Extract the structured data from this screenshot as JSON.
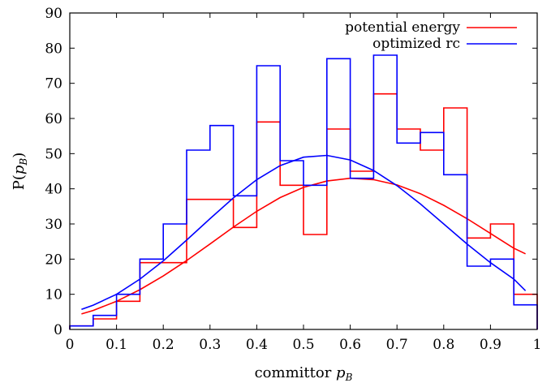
{
  "chart_data": {
    "type": "line",
    "xlabel": {
      "prefix": "committor ",
      "var": "p",
      "sub": "B"
    },
    "ylabel": {
      "prefix": "P(",
      "var": "p",
      "sub": "B",
      "suffix": ")"
    },
    "xlim": [
      0,
      1
    ],
    "ylim": [
      0,
      90
    ],
    "xticks": [
      0,
      0.1,
      0.2,
      0.3,
      0.4,
      0.5,
      0.6,
      0.7,
      0.8,
      0.9,
      1
    ],
    "xtick_labels": [
      "0",
      "0.1",
      "0.2",
      "0.3",
      "0.4",
      "0.5",
      "0.6",
      "0.7",
      "0.8",
      "0.9",
      "1"
    ],
    "yticks": [
      0,
      10,
      20,
      30,
      40,
      50,
      60,
      70,
      80,
      90
    ],
    "ytick_labels": [
      "0",
      "10",
      "20",
      "30",
      "40",
      "50",
      "60",
      "70",
      "80",
      "90"
    ],
    "grid": false,
    "legend_position": "top-right",
    "bin_edges": [
      0,
      0.05,
      0.1,
      0.15,
      0.2,
      0.25,
      0.3,
      0.35,
      0.4,
      0.45,
      0.5,
      0.55,
      0.6,
      0.65,
      0.7,
      0.75,
      0.8,
      0.85,
      0.9,
      0.95,
      1.0
    ],
    "series": [
      {
        "name": "potential energy",
        "color": "#ff0000",
        "histogram": [
          1,
          3,
          8,
          19,
          19,
          37,
          37,
          29,
          59,
          41,
          27,
          57,
          45,
          67,
          57,
          51,
          63,
          26,
          30,
          10
        ],
        "fit_x": [
          0.025,
          0.05,
          0.1,
          0.15,
          0.2,
          0.25,
          0.3,
          0.35,
          0.4,
          0.45,
          0.5,
          0.55,
          0.6,
          0.65,
          0.7,
          0.75,
          0.8,
          0.85,
          0.9,
          0.95,
          0.975
        ],
        "fit_y": [
          4.4,
          5.4,
          8.0,
          11.3,
          15.2,
          19.6,
          24.3,
          29.1,
          33.6,
          37.5,
          40.4,
          42.2,
          43.0,
          42.6,
          41.1,
          38.6,
          35.3,
          31.5,
          27.3,
          23.1,
          21.5
        ]
      },
      {
        "name": "optimized rc",
        "color": "#0000ff",
        "histogram": [
          1,
          4,
          10,
          20,
          30,
          51,
          58,
          38,
          75,
          48,
          41,
          77,
          43,
          78,
          53,
          56,
          44,
          18,
          20,
          7
        ],
        "fit_x": [
          0.025,
          0.05,
          0.1,
          0.15,
          0.2,
          0.25,
          0.3,
          0.35,
          0.4,
          0.45,
          0.5,
          0.55,
          0.6,
          0.65,
          0.7,
          0.75,
          0.8,
          0.85,
          0.9,
          0.95,
          0.975
        ],
        "fit_y": [
          5.7,
          6.9,
          10.0,
          14.3,
          19.5,
          25.4,
          31.5,
          37.4,
          42.6,
          46.6,
          49.0,
          49.5,
          48.2,
          45.2,
          40.9,
          35.7,
          30.0,
          24.3,
          19.0,
          14.3,
          11.0
        ]
      }
    ]
  }
}
